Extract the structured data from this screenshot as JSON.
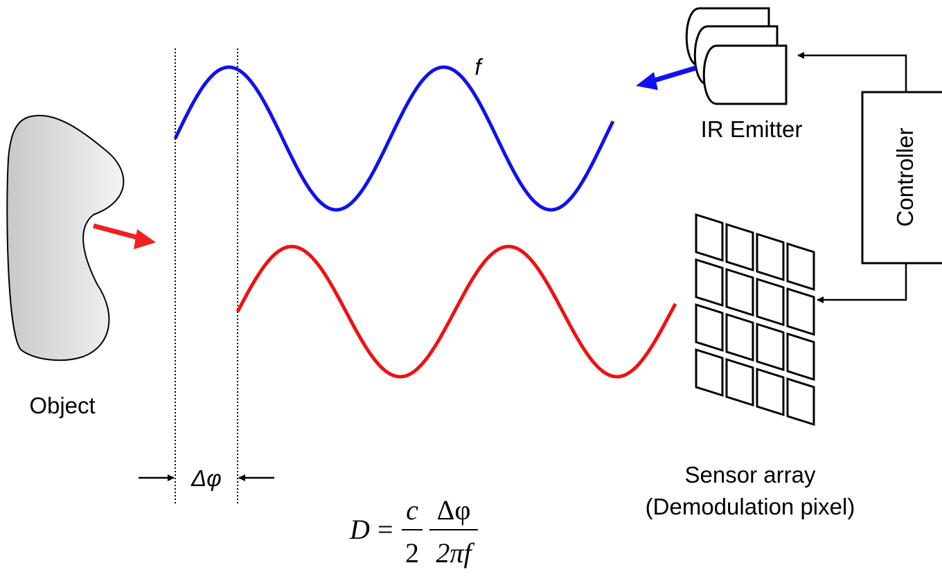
{
  "labels": {
    "frequency": "f",
    "emitter": "IR Emitter",
    "controller": "Controller",
    "object": "Object",
    "sensor": "Sensor array",
    "sensor_note": "(Demodulation pixel)",
    "phase": "Δφ"
  },
  "formula": {
    "lhs": "D",
    "eq": "=",
    "num1": "c",
    "den1": "2",
    "num2": "Δφ",
    "den2": "2πf"
  }
}
